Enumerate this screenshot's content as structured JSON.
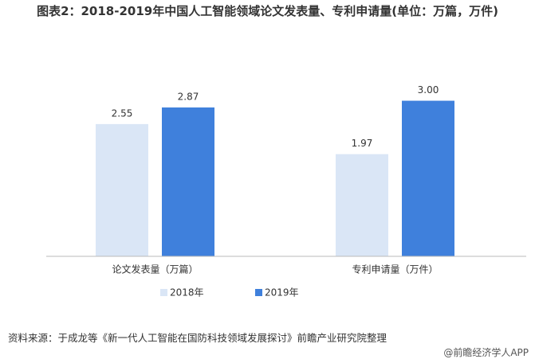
{
  "chart_data": {
    "type": "bar",
    "title": "图表2：2018-2019年中国人工智能领域论文发表量、专利申请量(单位：万篇，万件)",
    "categories": [
      "论文发表量（万篇）",
      "专利申请量（万件）"
    ],
    "series": [
      {
        "name": "2018年",
        "color": "#dae6f6",
        "values": [
          2.55,
          1.97
        ],
        "value_labels": [
          "2.55",
          "1.97"
        ]
      },
      {
        "name": "2019年",
        "color": "#3f80dc",
        "values": [
          2.87,
          3.0
        ],
        "value_labels": [
          "2.87",
          "3.00"
        ]
      }
    ],
    "ylim": [
      0,
      3.3
    ],
    "source": "资料来源：于成龙等《新一代人工智能在国防科技领域发展探讨》前瞻产业研究院整理",
    "footer": "@前瞻经济学人APP"
  }
}
